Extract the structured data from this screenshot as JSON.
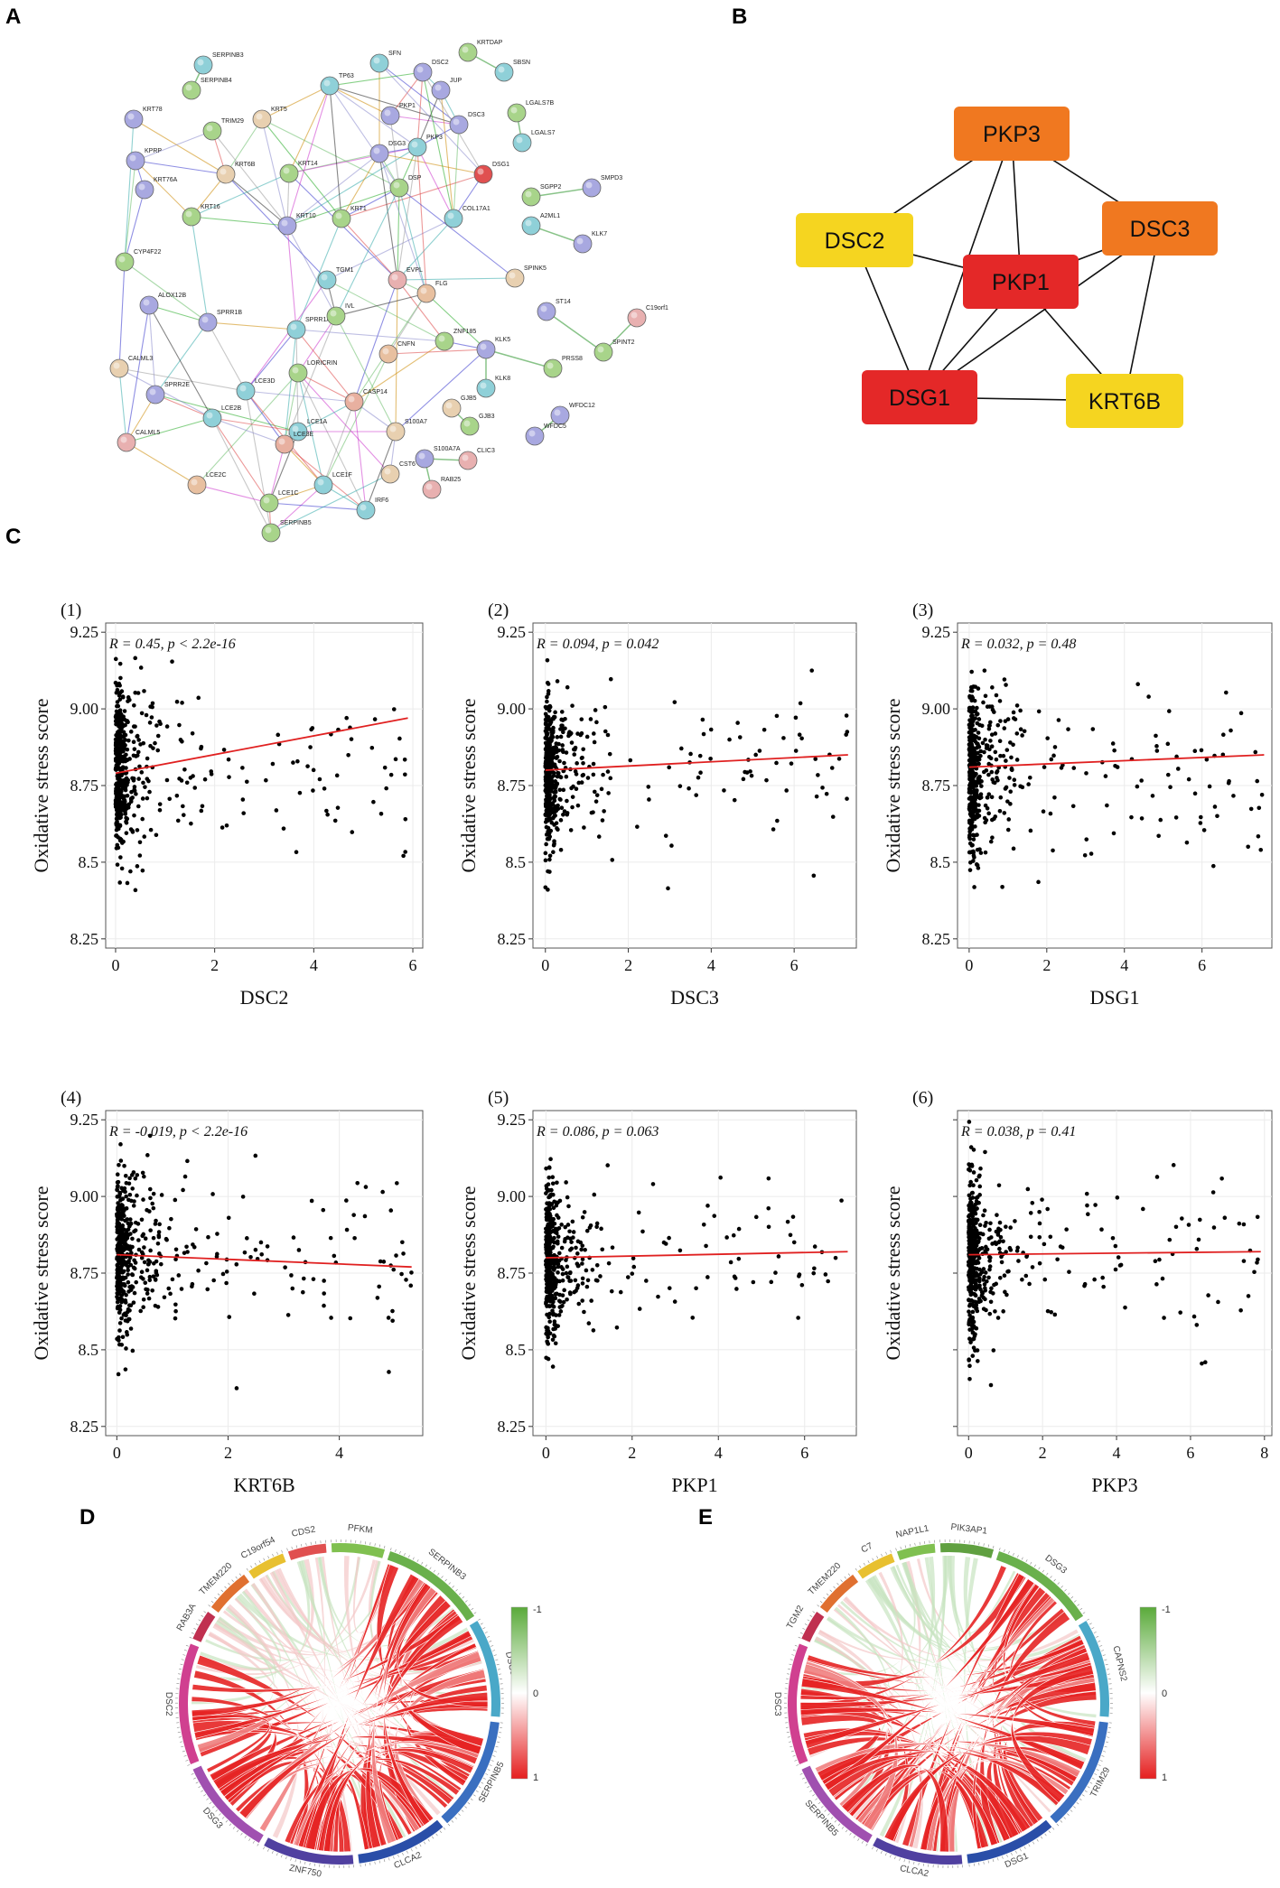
{
  "panel_labels": {
    "a": "A",
    "b": "B",
    "c": "C",
    "d": "D",
    "e": "E"
  },
  "network_a": {
    "nodes": [
      {
        "id": "SERPINB3",
        "color": "#8fd0d8"
      },
      {
        "id": "SERPINB4",
        "color": "#a8d48a"
      },
      {
        "id": "SFN",
        "color": "#8fd0d8"
      },
      {
        "id": "TP63",
        "color": "#8fd0d8"
      },
      {
        "id": "DSC2",
        "color": "#a8a8e0"
      },
      {
        "id": "KRTDAP",
        "color": "#a8d48a"
      },
      {
        "id": "SBSN",
        "color": "#8fd0d8"
      },
      {
        "id": "JUP",
        "color": "#a8a8e0"
      },
      {
        "id": "LGALS7B",
        "color": "#a8d48a"
      },
      {
        "id": "LGALS7",
        "color": "#8fd0d8"
      },
      {
        "id": "KRT78",
        "color": "#a8a8e0"
      },
      {
        "id": "TRIM29",
        "color": "#a8d48a"
      },
      {
        "id": "KRT5",
        "color": "#e8d0b0"
      },
      {
        "id": "PKP1",
        "color": "#a8a8e0"
      },
      {
        "id": "DSC3",
        "color": "#a8a8e0"
      },
      {
        "id": "KPRP",
        "color": "#a8a8e0"
      },
      {
        "id": "KRT6B",
        "color": "#e8d0b0"
      },
      {
        "id": "KRT14",
        "color": "#a8d48a"
      },
      {
        "id": "DSG3",
        "color": "#a8a8e0"
      },
      {
        "id": "PKP3",
        "color": "#8fd0d8"
      },
      {
        "id": "DSG1",
        "color": "#e05050"
      },
      {
        "id": "SMPD3",
        "color": "#a8a8e0"
      },
      {
        "id": "SGPP2",
        "color": "#a8d48a"
      },
      {
        "id": "KRT76A",
        "color": "#a8a8e0"
      },
      {
        "id": "DSP",
        "color": "#a8d48a"
      },
      {
        "id": "KRT16",
        "color": "#a8d48a"
      },
      {
        "id": "KRT10",
        "color": "#a8a8e0"
      },
      {
        "id": "KRT1",
        "color": "#a8d48a"
      },
      {
        "id": "COL17A1",
        "color": "#8fd0d8"
      },
      {
        "id": "A2ML1",
        "color": "#8fd0d8"
      },
      {
        "id": "KLK7",
        "color": "#a8a8e0"
      },
      {
        "id": "CYP4F22",
        "color": "#a8d48a"
      },
      {
        "id": "TGM1",
        "color": "#8fd0d8"
      },
      {
        "id": "EVPL",
        "color": "#e8b0b0"
      },
      {
        "id": "FLG",
        "color": "#e8c0a0"
      },
      {
        "id": "SPINK5",
        "color": "#e8d0b0"
      },
      {
        "id": "ALOX12B",
        "color": "#a8a8e0"
      },
      {
        "id": "SPRR1B",
        "color": "#a8a8e0"
      },
      {
        "id": "SPRR1A",
        "color": "#8fd0d8"
      },
      {
        "id": "IVL",
        "color": "#a8d48a"
      },
      {
        "id": "ST14",
        "color": "#a8a8e0"
      },
      {
        "id": "C19orf1",
        "color": "#e8b0b0"
      },
      {
        "id": "ZNF185",
        "color": "#a8d48a"
      },
      {
        "id": "KLK5",
        "color": "#a8a8e0"
      },
      {
        "id": "SPINT2",
        "color": "#a8d48a"
      },
      {
        "id": "CALML3",
        "color": "#e8d0b0"
      },
      {
        "id": "SPRR2E",
        "color": "#a8a8e0"
      },
      {
        "id": "LORICRIN",
        "color": "#a8d48a"
      },
      {
        "id": "CNFN",
        "color": "#e8c0a0"
      },
      {
        "id": "PRSS8",
        "color": "#a8d48a"
      },
      {
        "id": "LCE3D",
        "color": "#8fd0d8"
      },
      {
        "id": "CASP14",
        "color": "#e8b0a0"
      },
      {
        "id": "KLK8",
        "color": "#8fd0d8"
      },
      {
        "id": "LCE2B",
        "color": "#8fd0d8"
      },
      {
        "id": "GJB5",
        "color": "#e8d0b0"
      },
      {
        "id": "CALML5",
        "color": "#e8b0b0"
      },
      {
        "id": "S100A7",
        "color": "#e8d0b0"
      },
      {
        "id": "GJB3",
        "color": "#a8d48a"
      },
      {
        "id": "WFDC12",
        "color": "#a8a8e0"
      },
      {
        "id": "LCE1A",
        "color": "#8fd0d8"
      },
      {
        "id": "LCE3E",
        "color": "#e8b0a0"
      },
      {
        "id": "WFDC5",
        "color": "#a8a8e0"
      },
      {
        "id": "LCE2C",
        "color": "#e8c0a0"
      },
      {
        "id": "S100A7A",
        "color": "#a8a8e0"
      },
      {
        "id": "CLIC3",
        "color": "#e8b0b0"
      },
      {
        "id": "CST6",
        "color": "#e8d0b0"
      },
      {
        "id": "LCE1F",
        "color": "#8fd0d8"
      },
      {
        "id": "RAB25",
        "color": "#e8b0b0"
      },
      {
        "id": "LCE1C",
        "color": "#a8d48a"
      },
      {
        "id": "IRF6",
        "color": "#8fd0d8"
      },
      {
        "id": "SERPINB5",
        "color": "#a8d48a"
      }
    ]
  },
  "hub_network_b": {
    "nodes": [
      {
        "id": "PKP3",
        "color": "#f07820"
      },
      {
        "id": "DSC2",
        "color": "#f5d520"
      },
      {
        "id": "DSC3",
        "color": "#f07820"
      },
      {
        "id": "PKP1",
        "color": "#e42828"
      },
      {
        "id": "DSG1",
        "color": "#e42828"
      },
      {
        "id": "KRT6B",
        "color": "#f5d520"
      }
    ],
    "edges": [
      [
        "PKP3",
        "DSC2"
      ],
      [
        "PKP3",
        "DSC3"
      ],
      [
        "PKP3",
        "PKP1"
      ],
      [
        "PKP3",
        "DSG1"
      ],
      [
        "DSC2",
        "PKP1"
      ],
      [
        "DSC2",
        "DSG1"
      ],
      [
        "DSC3",
        "PKP1"
      ],
      [
        "DSC3",
        "DSG1"
      ],
      [
        "DSC3",
        "KRT6B"
      ],
      [
        "PKP1",
        "DSG1"
      ],
      [
        "PKP1",
        "KRT6B"
      ],
      [
        "DSG1",
        "KRT6B"
      ]
    ]
  },
  "chart_data": [
    {
      "type": "scatter",
      "panel": "(1)",
      "xlabel": "DSC2",
      "ylabel": "Oxidative stress score",
      "stat_label": "R = 0.45, p < 2.2e-16",
      "xlim": [
        -0.2,
        6.2
      ],
      "ylim": [
        8.22,
        9.28
      ],
      "xticks": [
        0,
        2,
        4,
        6
      ],
      "yticks": [
        "8.25",
        "8.5",
        "8.75",
        "9.00",
        "9.25"
      ],
      "trend": [
        [
          0,
          8.79
        ],
        [
          5.9,
          8.97
        ]
      ],
      "seed": 11,
      "xmax": 5.9
    },
    {
      "type": "scatter",
      "panel": "(2)",
      "xlabel": "DSC3",
      "ylabel": "Oxidative stress score",
      "stat_label": "R = 0.094, p = 0.042",
      "xlim": [
        -0.3,
        7.5
      ],
      "ylim": [
        8.22,
        9.28
      ],
      "xticks": [
        0,
        2,
        4,
        6
      ],
      "yticks": [
        "8.25",
        "8.5",
        "8.75",
        "9.00",
        "9.25"
      ],
      "trend": [
        [
          0,
          8.8
        ],
        [
          7.3,
          8.85
        ]
      ],
      "seed": 23,
      "xmax": 7.3
    },
    {
      "type": "scatter",
      "panel": "(3)",
      "xlabel": "DSG1",
      "ylabel": "Oxidative stress score",
      "stat_label": "R = 0.032, p = 0.48",
      "xlim": [
        -0.3,
        7.8
      ],
      "ylim": [
        8.22,
        9.28
      ],
      "xticks": [
        0,
        2,
        4,
        6
      ],
      "yticks": [
        "8.25",
        "8.5",
        "8.75",
        "9.00",
        "9.25"
      ],
      "trend": [
        [
          0,
          8.81
        ],
        [
          7.6,
          8.85
        ]
      ],
      "seed": 37,
      "xmax": 7.6
    },
    {
      "type": "scatter",
      "panel": "(4)",
      "xlabel": "KRT6B",
      "ylabel": "Oxidative stress score",
      "stat_label": "R = -0.019, p < 2.2e-16",
      "xlim": [
        -0.2,
        5.5
      ],
      "ylim": [
        8.22,
        9.28
      ],
      "xticks": [
        0,
        2,
        4
      ],
      "yticks": [
        "8.25",
        "8.5",
        "8.75",
        "9.00",
        "9.25"
      ],
      "trend": [
        [
          0,
          8.81
        ],
        [
          5.3,
          8.77
        ]
      ],
      "seed": 41,
      "xmax": 5.3
    },
    {
      "type": "scatter",
      "panel": "(5)",
      "xlabel": "PKP1",
      "ylabel": "Oxidative stress score",
      "stat_label": "R = 0.086, p = 0.063",
      "xlim": [
        -0.3,
        7.2
      ],
      "ylim": [
        8.22,
        9.28
      ],
      "xticks": [
        0,
        2,
        4,
        6
      ],
      "yticks": [
        "8.25",
        "8.5",
        "8.75",
        "9.00",
        "9.25"
      ],
      "trend": [
        [
          0,
          8.8
        ],
        [
          7.0,
          8.82
        ]
      ],
      "seed": 53,
      "xmax": 7.0
    },
    {
      "type": "scatter",
      "panel": "(6)",
      "xlabel": "PKP3",
      "ylabel": "Oxidative stress score",
      "stat_label": "R = 0.038, p = 0.41",
      "xlim": [
        -0.3,
        8.2
      ],
      "ylim": [
        8.22,
        9.28
      ],
      "xticks": [
        0,
        2,
        4,
        6,
        8
      ],
      "yticks": [],
      "trend": [
        [
          0,
          8.81
        ],
        [
          7.9,
          8.82
        ]
      ],
      "seed": 67,
      "xmax": 7.9
    }
  ],
  "chord_d": {
    "genes": [
      {
        "name": "SERPINB3",
        "color": "#6ab04c"
      },
      {
        "name": "DSC3",
        "color": "#4aa8c8"
      },
      {
        "name": "SERPINB5",
        "color": "#3a6fc0"
      },
      {
        "name": "CLCA2",
        "color": "#2a4ea8"
      },
      {
        "name": "ZNF750",
        "color": "#5040a0"
      },
      {
        "name": "DSG3",
        "color": "#a050b0"
      },
      {
        "name": "DSC2",
        "color": "#d04090"
      },
      {
        "name": "RAB3A",
        "color": "#c03050"
      },
      {
        "name": "TMEM220",
        "color": "#e07030"
      },
      {
        "name": "C19orf54",
        "color": "#e8c030"
      },
      {
        "name": "CDS2",
        "color": "#e05050"
      },
      {
        "name": "PFKM",
        "color": "#80c050"
      }
    ],
    "colorbar": {
      "top": "-1",
      "mid": "0",
      "bottom": "1"
    }
  },
  "chord_e": {
    "genes": [
      {
        "name": "DSG3",
        "color": "#6ab04c"
      },
      {
        "name": "CAPNS2",
        "color": "#4aa8c8"
      },
      {
        "name": "TRIM29",
        "color": "#3a6fc0"
      },
      {
        "name": "DSG1",
        "color": "#2a4ea8"
      },
      {
        "name": "CLCA2",
        "color": "#5040a0"
      },
      {
        "name": "SERPINB5",
        "color": "#a050b0"
      },
      {
        "name": "DSC3",
        "color": "#d04090"
      },
      {
        "name": "TGM2",
        "color": "#c03050"
      },
      {
        "name": "TMEM220",
        "color": "#e07030"
      },
      {
        "name": "C7",
        "color": "#e8c030"
      },
      {
        "name": "NAP1L1",
        "color": "#80c050"
      },
      {
        "name": "PIK3AP1",
        "color": "#60a040"
      }
    ],
    "colorbar": {
      "top": "-1",
      "mid": "0",
      "bottom": "1"
    }
  }
}
